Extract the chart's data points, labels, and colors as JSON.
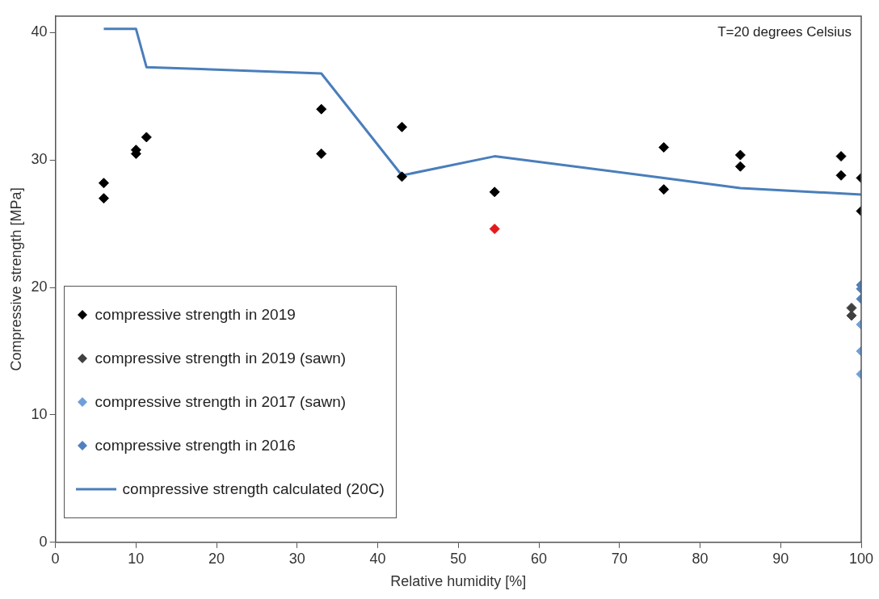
{
  "chart_data": {
    "type": "scatter",
    "xlabel": "Relative humidity [%]",
    "ylabel": "Compressive strength [MPa]",
    "xlim": [
      0,
      100
    ],
    "xticks": [
      0,
      10,
      20,
      30,
      40,
      50,
      60,
      70,
      80,
      90,
      100
    ],
    "ylim": [
      0,
      41.3
    ],
    "yticks": [
      0,
      10,
      20,
      30,
      40
    ],
    "grid": false,
    "legend": "bottom left",
    "marker": "diamond",
    "annotations": [
      "T=20 degrees Celsius"
    ],
    "series": [
      {
        "name": "compressive strength in 2019",
        "color": "#000000",
        "x": [
          6,
          6,
          10,
          10,
          11.3,
          33,
          33,
          43,
          43,
          54.5,
          75.5,
          75.5,
          85,
          85,
          97.5,
          97.5,
          100,
          100
        ],
        "values": [
          28.2,
          27.0,
          30.8,
          30.5,
          31.8,
          34.0,
          30.5,
          32.6,
          28.7,
          27.5,
          31.0,
          27.7,
          30.4,
          29.5,
          30.3,
          28.8,
          28.6,
          26.0
        ]
      },
      {
        "name": "compressive strength in 2019 (sawn)",
        "color": "#404040",
        "x": [
          98.8,
          98.8
        ],
        "values": [
          18.4,
          17.8
        ]
      },
      {
        "name": "compressive strength in 2017 (sawn)",
        "color": "#6f9fd8",
        "x": [
          100,
          100,
          100
        ],
        "values": [
          17.1,
          15.0,
          13.2
        ]
      },
      {
        "name": "compressive strength in 2016",
        "color": "#4f81bd",
        "x": [
          100,
          100,
          100
        ],
        "values": [
          20.2,
          19.9,
          19.1
        ]
      },
      {
        "name": "compressive strength calculated (20C)",
        "type": "line",
        "color": "#4a7ebb",
        "marker": "none",
        "x": [
          6,
          10,
          11.3,
          33,
          43,
          54.5,
          75.5,
          85,
          100
        ],
        "values": [
          40.3,
          40.3,
          37.3,
          36.8,
          28.8,
          30.3,
          28.6,
          27.8,
          27.3
        ]
      },
      {
        "color": "#e31a1c",
        "x": [
          54.5
        ],
        "values": [
          24.6
        ]
      }
    ]
  }
}
